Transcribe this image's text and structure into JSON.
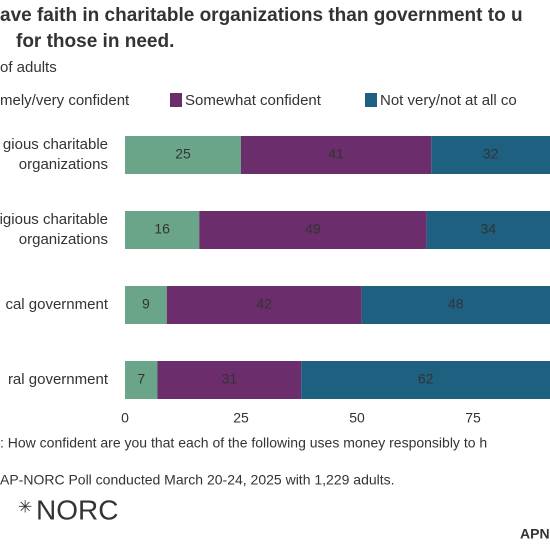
{
  "chart_data": {
    "type": "stacked_barh",
    "title": [
      "ave faith in charitable organizations than government to u",
      "for those in need."
    ],
    "subtitle": "of adults",
    "categories": [
      [
        "gious charitable",
        "organizations"
      ],
      [
        "igious charitable",
        "organizations"
      ],
      [
        "cal government"
      ],
      [
        "ral government"
      ]
    ],
    "series": [
      {
        "name": "mely/very confident",
        "color": "#6aa58a",
        "values": [
          25,
          16,
          9,
          7
        ]
      },
      {
        "name": "Somewhat confident",
        "color": "#6b2d6b",
        "values": [
          41,
          49,
          42,
          31
        ]
      },
      {
        "name": "Not very/not at all co",
        "color": "#1e6080",
        "values": [
          32,
          34,
          48,
          62
        ]
      }
    ],
    "xlim": [
      0,
      100
    ],
    "xticks": [
      0,
      25,
      50,
      75
    ],
    "note": ": How confident are you that each of the following uses money responsibly to h",
    "source": "AP-NORC Poll conducted March 20-24, 2025 with 1,229 adults.",
    "logo": "NORC",
    "brand": "APN"
  }
}
